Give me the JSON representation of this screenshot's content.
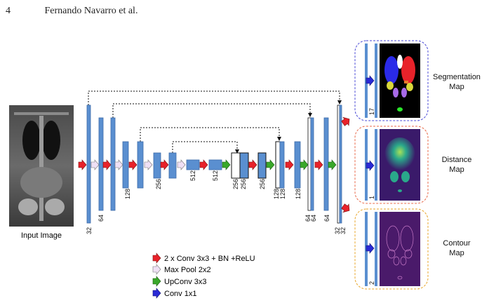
{
  "header": {
    "page_number": "4",
    "running_title": "Fernando Navarro et al."
  },
  "input_label": "Input Image",
  "channels": {
    "e1a": "32",
    "e1b": "64",
    "e2": "128",
    "e3": "256",
    "bott": "512",
    "bott2": "512",
    "d3a": "256",
    "d3b": "256",
    "d3c": "256",
    "d2a": "128",
    "d2b": "128",
    "d2c": "128",
    "d1a": "64",
    "d1b": "64",
    "d1c": "64",
    "d0a": "32",
    "d0b": "32"
  },
  "outputs": [
    {
      "label_line1": "Segmentation",
      "label_line2": "Map",
      "channels": "17",
      "box_color": "#4a4ad6"
    },
    {
      "label_line1": "Distance",
      "label_line2": "Map",
      "channels": "1",
      "box_color": "#e86a4a"
    },
    {
      "label_line1": "Contour",
      "label_line2": "Map",
      "channels": "2",
      "box_color": "#e8a62a"
    }
  ],
  "legend": [
    {
      "label": "2 x Conv 3x3 + BN +ReLU",
      "color": "#e8222a"
    },
    {
      "label": "Max Pool 2x2",
      "color": "#e8d6f0"
    },
    {
      "label": "UpConv 3x3",
      "color": "#3aa82a"
    },
    {
      "label": "Conv 1x1",
      "color": "#2a2ad6"
    }
  ],
  "colors": {
    "block": "#5a8fd0",
    "block_border": "#3c6aa8"
  }
}
